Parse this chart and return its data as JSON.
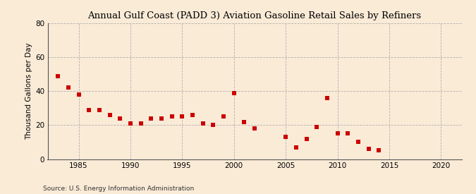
{
  "title": "Annual Gulf Coast (PADD 3) Aviation Gasoline Retail Sales by Refiners",
  "ylabel": "Thousand Gallons per Day",
  "source": "Source: U.S. Energy Information Administration",
  "background_color": "#faebd7",
  "plot_background_color": "#faebd7",
  "marker_color": "#cc0000",
  "marker": "s",
  "marker_size": 4,
  "xlim": [
    1982,
    2022
  ],
  "ylim": [
    0,
    80
  ],
  "yticks": [
    0,
    20,
    40,
    60,
    80
  ],
  "xticks": [
    1985,
    1990,
    1995,
    2000,
    2005,
    2010,
    2015,
    2020
  ],
  "years": [
    1983,
    1984,
    1985,
    1986,
    1987,
    1988,
    1989,
    1990,
    1991,
    1992,
    1993,
    1994,
    1995,
    1996,
    1997,
    1998,
    1999,
    2000,
    2001,
    2002,
    2005,
    2006,
    2007,
    2008,
    2009,
    2010,
    2011,
    2012,
    2013,
    2014
  ],
  "values": [
    49,
    42,
    38,
    29,
    29,
    26,
    24,
    21,
    21,
    24,
    24,
    25,
    25,
    26,
    21,
    20,
    25,
    39,
    22,
    18,
    13,
    7,
    12,
    19,
    36,
    15,
    15,
    10,
    6,
    5
  ],
  "title_fontsize": 9.5,
  "ylabel_fontsize": 7.5,
  "tick_fontsize": 7.5,
  "source_fontsize": 6.5
}
